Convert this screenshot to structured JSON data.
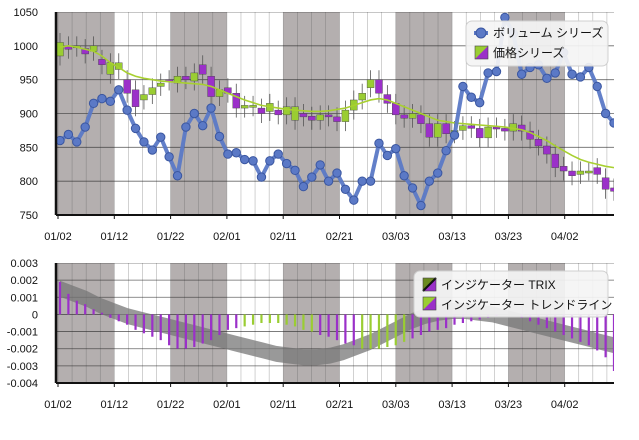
{
  "colors": {
    "volume": "#5b79c6",
    "volume_dark": "#3a56a0",
    "price_up": "#9acd32",
    "price_down": "#9b30c9",
    "trend_line": "#a8d030",
    "trix_band": "#777777",
    "band_light": "#ffffff",
    "band_dark": "#b0abab"
  },
  "chart_data": [
    {
      "type": "line",
      "name": "main-chart",
      "x_tick_labels": [
        "01/02",
        "01/12",
        "01/22",
        "02/01",
        "02/11",
        "02/21",
        "03/03",
        "03/13",
        "03/23",
        "04/02"
      ],
      "y_tick_labels": [
        "1050",
        "1000",
        "950",
        "900",
        "850",
        "800",
        "750"
      ],
      "ylim": [
        750,
        1050
      ],
      "legend": [
        {
          "label": "ボリューム シリーズ",
          "icon": "volume-series-icon"
        },
        {
          "label": "価格シリーズ",
          "icon": "price-series-icon"
        }
      ],
      "legend_position": "top-right",
      "volume_series": [
        860,
        869,
        858,
        880,
        915,
        922,
        918,
        935,
        905,
        878,
        858,
        846,
        865,
        836,
        808,
        880,
        900,
        882,
        908,
        866,
        840,
        842,
        832,
        830,
        806,
        830,
        840,
        826,
        816,
        792,
        806,
        824,
        800,
        812,
        788,
        772,
        800,
        800,
        856,
        838,
        848,
        808,
        790,
        764,
        800,
        812,
        845,
        868,
        940,
        924,
        916,
        960,
        962,
        1042,
        1018,
        958,
        968,
        972,
        952,
        960,
        990,
        958,
        954,
        968,
        940,
        900,
        886
      ],
      "price_candles": [
        [
          985,
          1005
        ],
        [
          1000,
          995
        ],
        [
          998,
          1000
        ],
        [
          996,
          988
        ],
        [
          992,
          1000
        ],
        [
          980,
          972
        ],
        [
          958,
          975
        ],
        [
          965,
          975
        ],
        [
          950,
          930
        ],
        [
          935,
          910
        ],
        [
          920,
          928
        ],
        [
          928,
          938
        ],
        [
          940,
          945
        ],
        [
          950,
          948
        ],
        [
          945,
          955
        ],
        [
          955,
          950
        ],
        [
          948,
          960
        ],
        [
          972,
          958
        ],
        [
          955,
          925
        ],
        [
          925,
          935
        ],
        [
          938,
          930
        ],
        [
          930,
          908
        ],
        [
          908,
          912
        ],
        [
          910,
          912
        ],
        [
          908,
          900
        ],
        [
          903,
          915
        ],
        [
          905,
          898
        ],
        [
          898,
          910
        ],
        [
          890,
          910
        ],
        [
          900,
          895
        ],
        [
          896,
          890
        ],
        [
          890,
          898
        ],
        [
          898,
          895
        ],
        [
          895,
          888
        ],
        [
          888,
          905
        ],
        [
          905,
          920
        ],
        [
          920,
          930
        ],
        [
          938,
          950
        ],
        [
          950,
          930
        ],
        [
          928,
          915
        ],
        [
          915,
          898
        ],
        [
          898,
          893
        ],
        [
          893,
          900
        ],
        [
          898,
          885
        ],
        [
          885,
          865
        ],
        [
          865,
          885
        ],
        [
          885,
          870
        ],
        [
          870,
          875
        ],
        [
          875,
          882
        ],
        [
          882,
          878
        ],
        [
          878,
          864
        ],
        [
          864,
          880
        ],
        [
          880,
          878
        ],
        [
          878,
          874
        ],
        [
          874,
          885
        ],
        [
          883,
          874
        ],
        [
          874,
          862
        ],
        [
          862,
          852
        ],
        [
          852,
          840
        ],
        [
          840,
          820
        ],
        [
          822,
          815
        ],
        [
          815,
          808
        ],
        [
          810,
          815
        ],
        [
          815,
          815
        ],
        [
          820,
          810
        ],
        [
          805,
          788
        ],
        [
          790,
          785
        ]
      ],
      "trend_line": [
        998,
        1000,
        998,
        995,
        992,
        985,
        975,
        968,
        960,
        955,
        952,
        950,
        948,
        947,
        946,
        945,
        944,
        943,
        940,
        935,
        930,
        925,
        920,
        916,
        912,
        910,
        908,
        906,
        905,
        904,
        903,
        903,
        904,
        906,
        908,
        912,
        916,
        920,
        922,
        920,
        915,
        910,
        905,
        900,
        895,
        890,
        888,
        886,
        885,
        884,
        883,
        882,
        881,
        880,
        878,
        876,
        872,
        866,
        860,
        852,
        845,
        838,
        832,
        828,
        825,
        822,
        820
      ]
    },
    {
      "type": "area",
      "name": "indicator-chart",
      "x_tick_labels": [
        "01/02",
        "01/12",
        "01/22",
        "02/01",
        "02/11",
        "02/21",
        "03/03",
        "03/13",
        "03/23",
        "04/02"
      ],
      "y_tick_labels": [
        "0.003",
        "0.002",
        "0.001",
        "0",
        "-0.001",
        "-0.002",
        "-0.003",
        "-0.004"
      ],
      "ylim": [
        -0.004,
        0.003
      ],
      "legend": [
        {
          "label": "インジケーター TRIX",
          "icon": "trix-indicator-icon"
        },
        {
          "label": "インジケーター トレンドライン",
          "icon": "trendline-indicator-icon"
        }
      ],
      "legend_position": "top-right",
      "trix_band": [
        0.0015,
        0.0012,
        0.0009,
        0.0005,
        0.0002,
        -0.0001,
        -0.0003,
        -0.0005,
        -0.0007,
        -0.0009,
        -0.0011,
        -0.0013,
        -0.0015,
        -0.0017,
        -0.0019,
        -0.0021,
        -0.0023,
        -0.0024,
        -0.0025,
        -0.0025,
        -0.0024,
        -0.0022,
        -0.0019,
        -0.0016,
        -0.0012,
        -0.0008,
        -0.0004,
        -0.0001,
        0.0001,
        0.0002,
        0.0002,
        0.0001,
        0.0,
        -0.0002,
        -0.0004,
        -0.0006,
        -0.0008,
        -0.001,
        -0.0012,
        -0.0014,
        -0.0016,
        -0.0018
      ],
      "histogram": [
        0.0019,
        0.0012,
        0.0008,
        0.0006,
        0.0003,
        0.0001,
        -0.0002,
        -0.0004,
        -0.0006,
        -0.0009,
        -0.0011,
        -0.0013,
        -0.0015,
        -0.0018,
        -0.002,
        -0.002,
        -0.0019,
        -0.0017,
        -0.0015,
        -0.0012,
        -0.0009,
        -0.0008,
        -0.0007,
        -0.0006,
        -0.0005,
        -0.0005,
        -0.0005,
        -0.0006,
        -0.0007,
        -0.0009,
        -0.001,
        -0.0012,
        -0.0013,
        -0.0015,
        -0.0017,
        -0.0018,
        -0.002,
        -0.002,
        -0.002,
        -0.0019,
        -0.0018,
        -0.0016,
        -0.0014,
        -0.0012,
        -0.001,
        -0.0009,
        -0.0008,
        -0.0006,
        -0.0005,
        -0.0004,
        -0.0003,
        -0.0002,
        -0.0001,
        0.0,
        0.0,
        -0.0002,
        -0.0004,
        -0.0006,
        -0.0008,
        -0.001,
        -0.0012,
        -0.0014,
        -0.0016,
        -0.0018,
        -0.0021,
        -0.0025,
        -0.0033
      ]
    }
  ]
}
